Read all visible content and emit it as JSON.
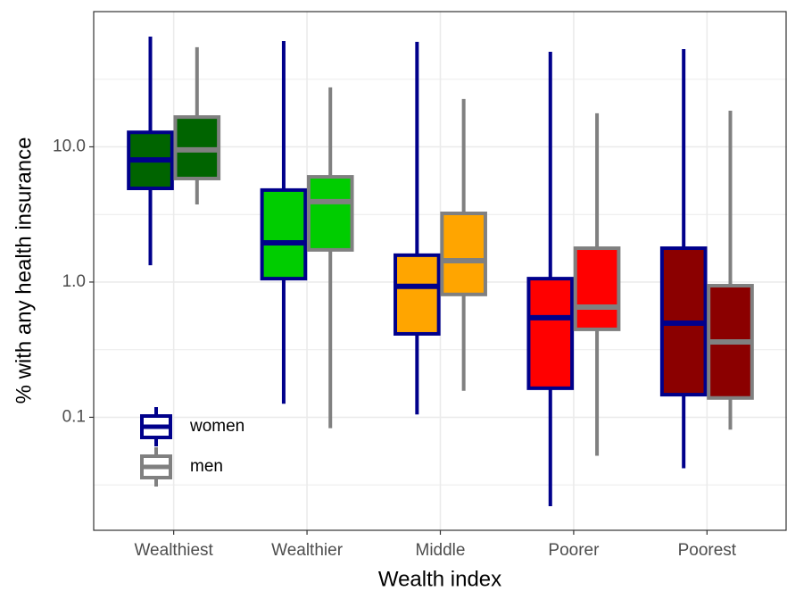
{
  "chart_data": {
    "type": "box",
    "x_label": "Wealth index",
    "y_label": "% with any health insurance",
    "categories": [
      "Wealthiest",
      "Wealthier",
      "Middle",
      "Poorer",
      "Poorest"
    ],
    "box_fills": [
      "#006400",
      "#00cd00",
      "#ffa500",
      "#ff0000",
      "#8b0000"
    ],
    "series": [
      {
        "name": "women",
        "color": "#00008b",
        "min": [
          1.33,
          0.126,
          0.105,
          0.022,
          0.042
        ],
        "q1": [
          4.93,
          1.06,
          0.414,
          0.164,
          0.147
        ],
        "median": [
          8.0,
          1.95,
          0.93,
          0.545,
          0.497
        ],
        "q3": [
          12.8,
          4.79,
          1.58,
          1.06,
          1.78
        ],
        "max": [
          65.3,
          60.6,
          59.7,
          50.5,
          52.8
        ]
      },
      {
        "name": "men",
        "color": "#808080",
        "min": [
          3.75,
          0.083,
          0.157,
          0.052,
          0.081
        ],
        "q1": [
          5.83,
          1.73,
          0.81,
          0.447,
          0.139
        ],
        "median": [
          9.5,
          3.93,
          1.44,
          0.653,
          0.361
        ],
        "q3": [
          16.6,
          6.0,
          3.22,
          1.78,
          0.94
        ],
        "max": [
          54.5,
          27.5,
          22.6,
          17.7,
          18.5
        ]
      }
    ],
    "log_y": true,
    "ylim": [
      0.0146,
      100
    ],
    "yticks": [
      {
        "value": 10,
        "label": "10.0"
      },
      {
        "value": 1,
        "label": "1.0"
      },
      0.1
    ],
    "yminor": [
      31.62,
      3.162,
      0.3162,
      0.03162
    ],
    "grid": true,
    "legend_position": "bottom-left"
  }
}
